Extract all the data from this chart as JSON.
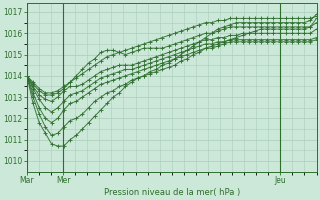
{
  "bg_color": "#cce8d8",
  "grid_color": "#aaccbb",
  "line_color": "#2d6e2d",
  "ylabel_text": "Pression niveau de la mer( hPa )",
  "ylim": [
    1009.5,
    1017.4
  ],
  "yticks": [
    1010,
    1011,
    1012,
    1013,
    1014,
    1015,
    1016,
    1017
  ],
  "xlim": [
    0,
    48
  ],
  "xtick_positions": [
    0,
    6,
    42
  ],
  "xtick_labels": [
    "Mar",
    "Mer",
    "Jeu"
  ],
  "vline_positions": [
    0,
    6,
    42
  ],
  "series": [
    [
      1014.0,
      1013.7,
      1013.4,
      1013.2,
      1013.2,
      1013.3,
      1013.5,
      1013.7,
      1013.9,
      1014.1,
      1014.3,
      1014.5,
      1014.7,
      1014.9,
      1015.0,
      1015.1,
      1015.2,
      1015.3,
      1015.4,
      1015.5,
      1015.6,
      1015.7,
      1015.8,
      1015.9,
      1016.0,
      1016.1,
      1016.2,
      1016.3,
      1016.4,
      1016.5,
      1016.5,
      1016.6,
      1016.6,
      1016.7,
      1016.7,
      1016.7,
      1016.7,
      1016.7,
      1016.7,
      1016.7,
      1016.7,
      1016.7,
      1016.7,
      1016.7,
      1016.7,
      1016.7,
      1016.7,
      1016.8
    ],
    [
      1014.0,
      1013.6,
      1013.3,
      1013.1,
      1013.1,
      1013.2,
      1013.4,
      1013.7,
      1014.0,
      1014.3,
      1014.6,
      1014.8,
      1015.1,
      1015.2,
      1015.2,
      1015.1,
      1015.0,
      1015.1,
      1015.2,
      1015.3,
      1015.3,
      1015.3,
      1015.3,
      1015.4,
      1015.5,
      1015.6,
      1015.7,
      1015.8,
      1015.9,
      1016.0,
      1016.0,
      1016.1,
      1016.2,
      1016.3,
      1016.3,
      1016.3,
      1016.3,
      1016.3,
      1016.3,
      1016.3,
      1016.3,
      1016.3,
      1016.3,
      1016.3,
      1016.3,
      1016.3,
      1016.3,
      1016.5
    ],
    [
      1014.0,
      1013.5,
      1013.1,
      1012.9,
      1012.8,
      1013.0,
      1013.3,
      1013.5,
      1013.5,
      1013.6,
      1013.8,
      1014.0,
      1014.2,
      1014.3,
      1014.4,
      1014.5,
      1014.5,
      1014.5,
      1014.6,
      1014.7,
      1014.8,
      1014.9,
      1015.0,
      1015.1,
      1015.2,
      1015.3,
      1015.4,
      1015.5,
      1015.6,
      1015.7,
      1015.7,
      1015.8,
      1015.8,
      1015.9,
      1015.9,
      1016.0,
      1016.0,
      1016.0,
      1016.0,
      1016.0,
      1016.0,
      1016.0,
      1016.0,
      1016.0,
      1016.0,
      1016.0,
      1016.0,
      1016.2
    ],
    [
      1014.0,
      1013.4,
      1012.9,
      1012.5,
      1012.3,
      1012.5,
      1012.8,
      1013.1,
      1013.2,
      1013.3,
      1013.5,
      1013.7,
      1013.9,
      1014.0,
      1014.1,
      1014.2,
      1014.3,
      1014.3,
      1014.4,
      1014.5,
      1014.6,
      1014.7,
      1014.8,
      1014.9,
      1015.0,
      1015.1,
      1015.2,
      1015.3,
      1015.4,
      1015.5,
      1015.5,
      1015.6,
      1015.6,
      1015.7,
      1015.7,
      1015.7,
      1015.7,
      1015.7,
      1015.7,
      1015.7,
      1015.7,
      1015.7,
      1015.7,
      1015.7,
      1015.7,
      1015.7,
      1015.7,
      1015.8
    ],
    [
      1014.0,
      1013.2,
      1012.5,
      1012.0,
      1011.8,
      1012.0,
      1012.4,
      1012.7,
      1012.8,
      1013.0,
      1013.2,
      1013.4,
      1013.6,
      1013.7,
      1013.8,
      1013.9,
      1014.0,
      1014.1,
      1014.2,
      1014.3,
      1014.4,
      1014.5,
      1014.6,
      1014.7,
      1014.8,
      1014.9,
      1015.0,
      1015.1,
      1015.2,
      1015.3,
      1015.3,
      1015.4,
      1015.5,
      1015.6,
      1015.6,
      1015.6,
      1015.6,
      1015.6,
      1015.6,
      1015.6,
      1015.6,
      1015.6,
      1015.6,
      1015.6,
      1015.6,
      1015.6,
      1015.6,
      1015.7
    ],
    [
      1014.0,
      1013.0,
      1012.2,
      1011.6,
      1011.2,
      1011.3,
      1011.6,
      1011.9,
      1012.0,
      1012.2,
      1012.5,
      1012.8,
      1013.0,
      1013.2,
      1013.3,
      1013.5,
      1013.6,
      1013.8,
      1013.9,
      1014.0,
      1014.1,
      1014.2,
      1014.3,
      1014.4,
      1014.5,
      1014.7,
      1014.8,
      1015.0,
      1015.1,
      1015.3,
      1015.4,
      1015.5,
      1015.6,
      1015.7,
      1015.8,
      1015.9,
      1016.0,
      1016.1,
      1016.2,
      1016.2,
      1016.2,
      1016.2,
      1016.2,
      1016.2,
      1016.2,
      1016.2,
      1016.3,
      1016.7
    ],
    [
      1014.0,
      1012.7,
      1011.8,
      1011.3,
      1010.8,
      1010.7,
      1010.7,
      1011.0,
      1011.2,
      1011.5,
      1011.8,
      1012.1,
      1012.4,
      1012.7,
      1013.0,
      1013.2,
      1013.5,
      1013.7,
      1013.9,
      1014.0,
      1014.2,
      1014.3,
      1014.5,
      1014.6,
      1014.8,
      1015.0,
      1015.2,
      1015.4,
      1015.6,
      1015.8,
      1016.0,
      1016.2,
      1016.3,
      1016.4,
      1016.5,
      1016.5,
      1016.5,
      1016.5,
      1016.5,
      1016.5,
      1016.5,
      1016.5,
      1016.5,
      1016.5,
      1016.5,
      1016.5,
      1016.6,
      1016.9
    ]
  ]
}
